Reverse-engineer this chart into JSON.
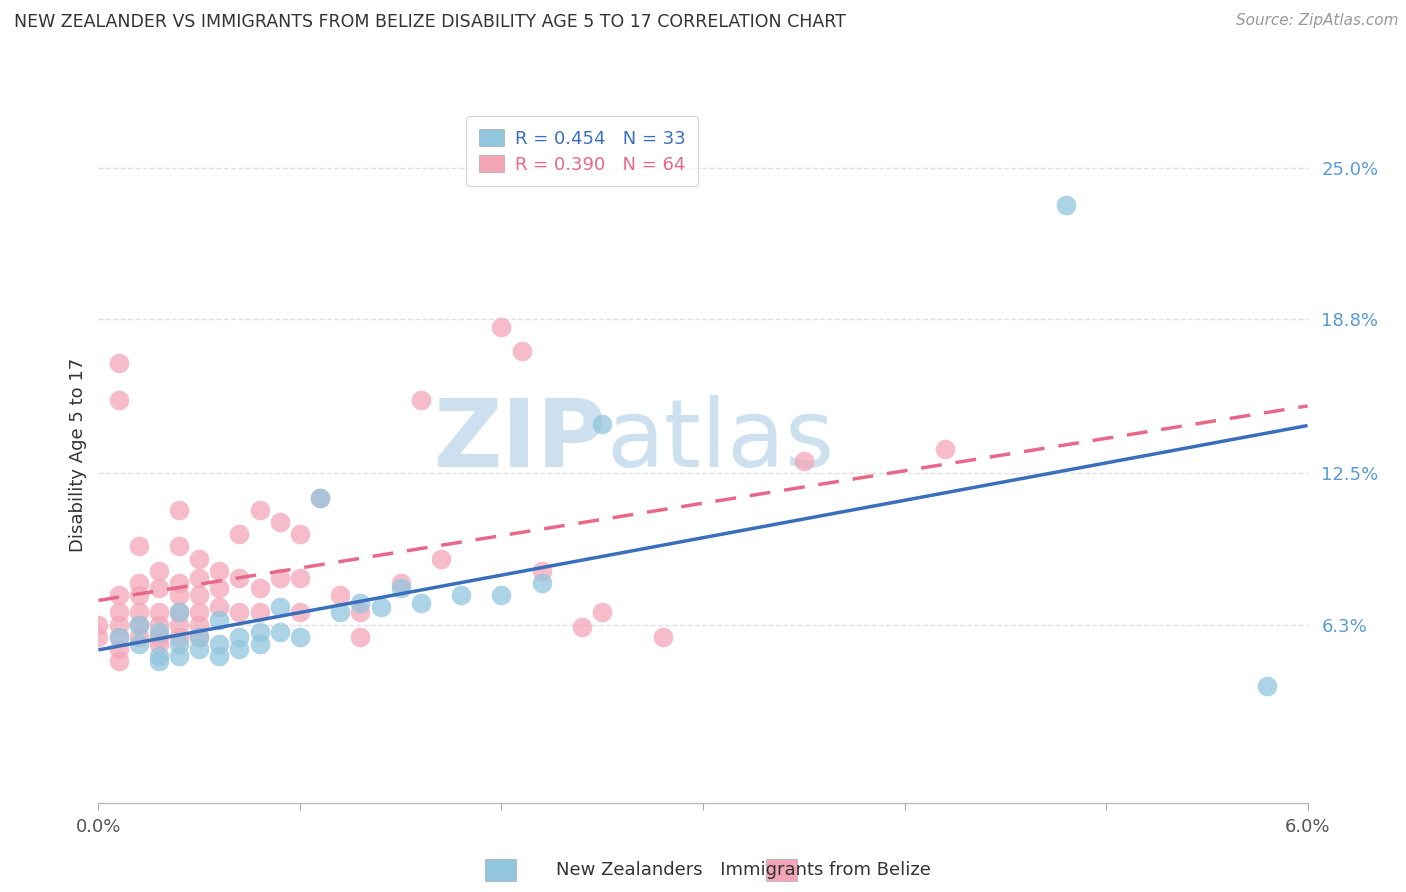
{
  "title": "NEW ZEALANDER VS IMMIGRANTS FROM BELIZE DISABILITY AGE 5 TO 17 CORRELATION CHART",
  "source": "Source: ZipAtlas.com",
  "ylabel": "Disability Age 5 to 17",
  "ytick_labels": [
    "6.3%",
    "12.5%",
    "18.8%",
    "25.0%"
  ],
  "ytick_values": [
    0.063,
    0.125,
    0.188,
    0.25
  ],
  "xlim": [
    0.0,
    0.06
  ],
  "ylim": [
    -0.01,
    0.275
  ],
  "legend_r1": "R = 0.454",
  "legend_n1": "N = 33",
  "legend_r2": "R = 0.390",
  "legend_n2": "N = 64",
  "blue_color": "#92c5de",
  "pink_color": "#f4a6b8",
  "blue_line_color": "#3a6fbc",
  "pink_line_color": "#e8688a",
  "blue_dots": [
    [
      0.001,
      0.058
    ],
    [
      0.002,
      0.063
    ],
    [
      0.002,
      0.055
    ],
    [
      0.003,
      0.06
    ],
    [
      0.003,
      0.05
    ],
    [
      0.003,
      0.048
    ],
    [
      0.004,
      0.068
    ],
    [
      0.004,
      0.055
    ],
    [
      0.004,
      0.05
    ],
    [
      0.005,
      0.058
    ],
    [
      0.005,
      0.053
    ],
    [
      0.006,
      0.065
    ],
    [
      0.006,
      0.055
    ],
    [
      0.006,
      0.05
    ],
    [
      0.007,
      0.058
    ],
    [
      0.007,
      0.053
    ],
    [
      0.008,
      0.06
    ],
    [
      0.008,
      0.055
    ],
    [
      0.009,
      0.07
    ],
    [
      0.009,
      0.06
    ],
    [
      0.01,
      0.058
    ],
    [
      0.011,
      0.115
    ],
    [
      0.012,
      0.068
    ],
    [
      0.013,
      0.072
    ],
    [
      0.014,
      0.07
    ],
    [
      0.015,
      0.078
    ],
    [
      0.016,
      0.072
    ],
    [
      0.018,
      0.075
    ],
    [
      0.02,
      0.075
    ],
    [
      0.022,
      0.08
    ],
    [
      0.025,
      0.145
    ],
    [
      0.048,
      0.235
    ],
    [
      0.058,
      0.038
    ]
  ],
  "pink_dots": [
    [
      0.0,
      0.063
    ],
    [
      0.0,
      0.058
    ],
    [
      0.001,
      0.075
    ],
    [
      0.001,
      0.068
    ],
    [
      0.001,
      0.063
    ],
    [
      0.001,
      0.058
    ],
    [
      0.001,
      0.053
    ],
    [
      0.001,
      0.048
    ],
    [
      0.001,
      0.17
    ],
    [
      0.001,
      0.155
    ],
    [
      0.002,
      0.095
    ],
    [
      0.002,
      0.08
    ],
    [
      0.002,
      0.075
    ],
    [
      0.002,
      0.068
    ],
    [
      0.002,
      0.063
    ],
    [
      0.002,
      0.058
    ],
    [
      0.003,
      0.085
    ],
    [
      0.003,
      0.078
    ],
    [
      0.003,
      0.068
    ],
    [
      0.003,
      0.063
    ],
    [
      0.003,
      0.058
    ],
    [
      0.003,
      0.055
    ],
    [
      0.004,
      0.11
    ],
    [
      0.004,
      0.095
    ],
    [
      0.004,
      0.08
    ],
    [
      0.004,
      0.075
    ],
    [
      0.004,
      0.068
    ],
    [
      0.004,
      0.063
    ],
    [
      0.004,
      0.058
    ],
    [
      0.005,
      0.09
    ],
    [
      0.005,
      0.082
    ],
    [
      0.005,
      0.075
    ],
    [
      0.005,
      0.068
    ],
    [
      0.005,
      0.063
    ],
    [
      0.005,
      0.058
    ],
    [
      0.006,
      0.085
    ],
    [
      0.006,
      0.078
    ],
    [
      0.006,
      0.07
    ],
    [
      0.007,
      0.1
    ],
    [
      0.007,
      0.082
    ],
    [
      0.007,
      0.068
    ],
    [
      0.008,
      0.11
    ],
    [
      0.008,
      0.078
    ],
    [
      0.008,
      0.068
    ],
    [
      0.009,
      0.105
    ],
    [
      0.009,
      0.082
    ],
    [
      0.01,
      0.1
    ],
    [
      0.01,
      0.082
    ],
    [
      0.01,
      0.068
    ],
    [
      0.011,
      0.115
    ],
    [
      0.012,
      0.075
    ],
    [
      0.013,
      0.068
    ],
    [
      0.013,
      0.058
    ],
    [
      0.015,
      0.08
    ],
    [
      0.016,
      0.155
    ],
    [
      0.017,
      0.09
    ],
    [
      0.02,
      0.185
    ],
    [
      0.021,
      0.175
    ],
    [
      0.022,
      0.085
    ],
    [
      0.024,
      0.062
    ],
    [
      0.025,
      0.068
    ],
    [
      0.028,
      0.058
    ],
    [
      0.035,
      0.13
    ],
    [
      0.042,
      0.135
    ]
  ],
  "watermark_zip": "ZIP",
  "watermark_atlas": "atlas",
  "watermark_color": "#cce0f0",
  "background_color": "#ffffff",
  "grid_color": "#e0e0e0"
}
